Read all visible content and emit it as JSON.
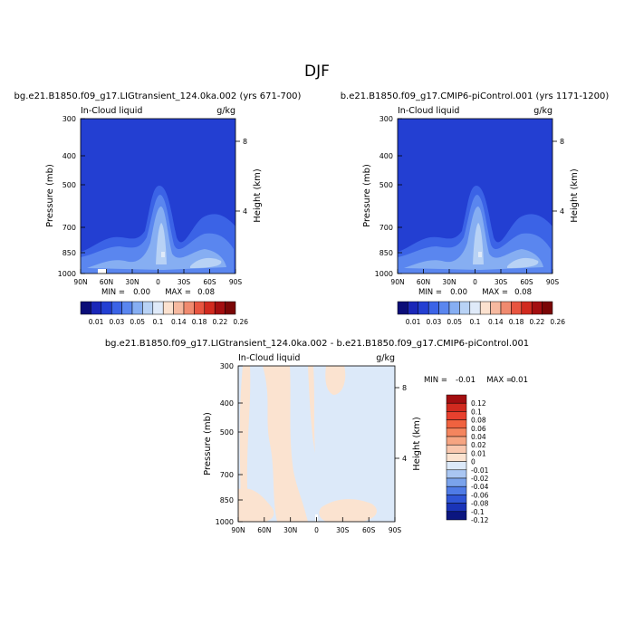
{
  "page": {
    "title": "DJF"
  },
  "chart_data": [
    {
      "type": "contour",
      "title": "bg.e21.B1850.f09_g17.LIGtransient_124.0ka.002 (yrs 671-700)",
      "subtitle_left": "In-Cloud liquid",
      "units": "g/kg",
      "ylabel": "Pressure (mb)",
      "ylabel_right": "Height (km)",
      "x_ticks": [
        "90N",
        "60N",
        "30N",
        "0",
        "30S",
        "60S",
        "90S"
      ],
      "y_ticks": [
        "300",
        "400",
        "500",
        "700",
        "850",
        "1000"
      ],
      "y_ticks_right": [
        "8",
        "4"
      ],
      "ylim": [
        1000,
        300
      ],
      "y_scale": "log",
      "min_label": "MIN =",
      "min_value": "0.00",
      "max_label": "MAX =",
      "max_value": "0.08",
      "colorbar_labels": [
        "0.01",
        "0.03",
        "0.05",
        "0.1",
        "0.14",
        "0.18",
        "0.22",
        "0.26"
      ],
      "colors": [
        "#0b0d78",
        "#1a27b8",
        "#233fd2",
        "#3b63e6",
        "#5a86ef",
        "#86aef2",
        "#b8d2f5",
        "#dfeaf9",
        "#fbe1cf",
        "#f6b9a0",
        "#f08a6f",
        "#e85540",
        "#d12a1f",
        "#a30e10",
        "#7a0606"
      ]
    },
    {
      "type": "contour",
      "title": "b.e21.B1850.f09_g17.CMIP6-piControl.001 (yrs 1171-1200)",
      "subtitle_left": "In-Cloud liquid",
      "units": "g/kg",
      "ylabel": "Pressure (mb)",
      "ylabel_right": "Height (km)",
      "x_ticks": [
        "90N",
        "60N",
        "30N",
        "0",
        "30S",
        "60S",
        "90S"
      ],
      "y_ticks": [
        "300",
        "400",
        "500",
        "700",
        "850",
        "1000"
      ],
      "y_ticks_right": [
        "8",
        "4"
      ],
      "ylim": [
        1000,
        300
      ],
      "y_scale": "log",
      "min_label": "MIN =",
      "min_value": "0.00",
      "max_label": "MAX =",
      "max_value": "0.08",
      "colorbar_labels": [
        "0.01",
        "0.03",
        "0.05",
        "0.1",
        "0.14",
        "0.18",
        "0.22",
        "0.26"
      ]
    },
    {
      "type": "contour",
      "title": "bg.e21.B1850.f09_g17.LIGtransient_124.0ka.002 - b.e21.B1850.f09_g17.CMIP6-piControl.001",
      "subtitle_left": "In-Cloud liquid",
      "units": "g/kg",
      "ylabel": "Pressure (mb)",
      "ylabel_right": "Height (km)",
      "x_ticks": [
        "90N",
        "60N",
        "30N",
        "0",
        "30S",
        "60S",
        "90S"
      ],
      "y_ticks": [
        "300",
        "400",
        "500",
        "700",
        "850",
        "1000"
      ],
      "y_ticks_right": [
        "8",
        "4"
      ],
      "ylim": [
        1000,
        300
      ],
      "y_scale": "log",
      "min_label": "MIN =",
      "min_value": "-0.01",
      "max_label": "MAX =",
      "max_value": "0.01",
      "colorbar_labels": [
        "0.12",
        "0.1",
        "0.08",
        "0.06",
        "0.04",
        "0.02",
        "0.01",
        "0",
        "-0.01",
        "-0.02",
        "-0.04",
        "-0.06",
        "-0.08",
        "-0.1",
        "-0.12"
      ],
      "colors": [
        "#a30e10",
        "#d12a1f",
        "#e8402e",
        "#f0623f",
        "#f4855e",
        "#f6a582",
        "#f9c7ae",
        "#fbe3d0",
        "#dce9f9",
        "#a9c6f2",
        "#7aa3ec",
        "#4f7be6",
        "#2f55d6",
        "#1a34b8",
        "#0b1680"
      ]
    }
  ]
}
